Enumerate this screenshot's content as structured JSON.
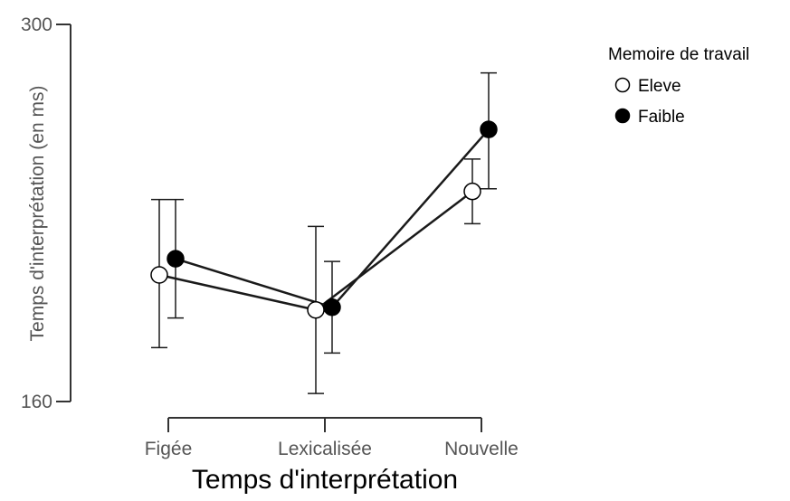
{
  "chart_data": {
    "type": "line",
    "categories": [
      "Figée",
      "Lexicalisée",
      "Nouvelle"
    ],
    "xlabel": "Temps d'interprétation",
    "ylabel": "Temps d'interprétation (en ms)",
    "ylim": [
      160,
      300
    ],
    "yticks": [
      "300",
      "160"
    ],
    "grid": false,
    "legend": {
      "title": "Memoire de travail",
      "placement": "top-right"
    },
    "series": [
      {
        "name": "Eleve",
        "marker": "open-circle",
        "values": [
          207,
          194,
          238
        ],
        "error_low": [
          180,
          163,
          226
        ],
        "error_high": [
          235,
          225,
          250
        ]
      },
      {
        "name": "Faible",
        "marker": "filled-circle",
        "values": [
          213,
          195,
          261
        ],
        "error_low": [
          191,
          178,
          239
        ],
        "error_high": [
          235,
          212,
          282
        ]
      }
    ],
    "colors": {
      "line": "#1a1a1a",
      "axis": "#333333",
      "open_fill": "#ffffff",
      "filled_fill": "#000000"
    }
  }
}
